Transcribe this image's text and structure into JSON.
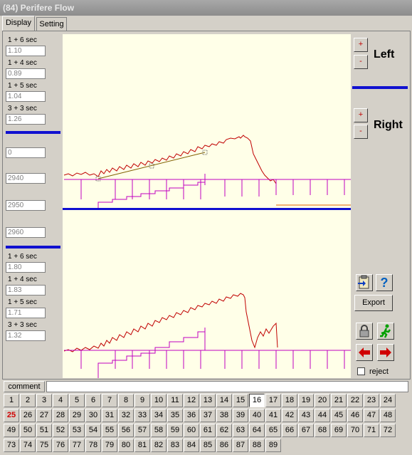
{
  "window": {
    "title": "(84) Perifere Flow"
  },
  "tabs": [
    {
      "label": "Display",
      "active": true
    },
    {
      "label": "Setting",
      "active": false
    }
  ],
  "left_top": [
    {
      "label": "1 + 6 sec",
      "value": "1.10"
    },
    {
      "label": "1 + 4 sec",
      "value": "0.89"
    },
    {
      "label": "1 + 5 sec",
      "value": "1.04"
    },
    {
      "label": "3 + 3 sec",
      "value": "1.26"
    }
  ],
  "left_mid": [
    "0",
    "2940",
    "2950",
    "2960"
  ],
  "left_bottom": [
    {
      "label": "1 + 6 sec",
      "value": "1.80"
    },
    {
      "label": "1 + 4 sec",
      "value": "1.83"
    },
    {
      "label": "1 + 5 sec",
      "value": "1.71"
    },
    {
      "label": "3 + 3 sec",
      "value": "1.32"
    }
  ],
  "right": {
    "left_label": "Left",
    "right_label": "Right",
    "plus": "+",
    "minus": "-",
    "export_label": "Export",
    "help_glyph": "?",
    "reject_label": "reject"
  },
  "comment": {
    "label": "comment",
    "value": ""
  },
  "numbers": {
    "selected": 16,
    "highlighted": 25,
    "rows": [
      [
        "1",
        "2",
        "3",
        "4",
        "5",
        "6",
        "7",
        "8",
        "9",
        "10",
        "11",
        "12",
        "13",
        "14",
        "15",
        "16",
        "17",
        "18",
        "19",
        "20",
        "21",
        "22",
        "23",
        "24"
      ],
      [
        "25",
        "26",
        "27",
        "28",
        "29",
        "30",
        "31",
        "32",
        "33",
        "34",
        "35",
        "36",
        "37",
        "38",
        "39",
        "40",
        "41",
        "42",
        "43",
        "44",
        "45",
        "46",
        "47",
        "48"
      ],
      [
        "49",
        "50",
        "51",
        "52",
        "53",
        "54",
        "55",
        "56",
        "57",
        "58",
        "59",
        "60",
        "61",
        "62",
        "63",
        "64",
        "65",
        "66",
        "67",
        "68",
        "69",
        "70",
        "71",
        "72"
      ],
      [
        "73",
        "74",
        "75",
        "76",
        "77",
        "78",
        "79",
        "80",
        "81",
        "82",
        "83",
        "84",
        "85",
        "86",
        "87",
        "88",
        "89"
      ]
    ]
  },
  "colors": {
    "separator": "#1010d0",
    "trace": "#c00000",
    "pulse": "#c000c0"
  }
}
